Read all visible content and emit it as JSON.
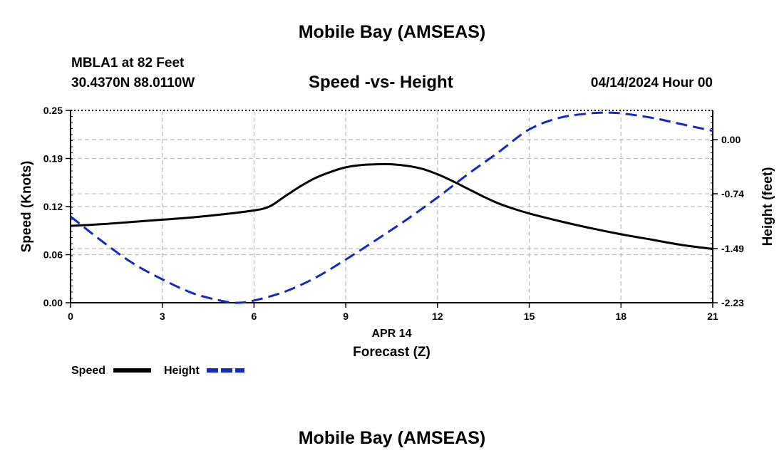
{
  "header": {
    "title": "Mobile Bay (AMSEAS)",
    "station": "MBLA1 at 82 Feet",
    "coords": "30.4370N  88.0110W",
    "subtitle": "Speed -vs- Height",
    "datetime": "04/14/2024 Hour 00"
  },
  "footer": {
    "title": "Mobile Bay (AMSEAS)"
  },
  "chart_data": {
    "type": "line",
    "title": "Speed -vs- Height",
    "xlabel": "Forecast (Z)",
    "xdate": "APR 14",
    "ylabel": "Speed (Knots)",
    "y2label": "Height (feet)",
    "xlim": [
      0,
      21
    ],
    "ylim": [
      0,
      0.25
    ],
    "y2lim": [
      -2.23,
      0.4
    ],
    "xticks": [
      "0",
      "3",
      "6",
      "9",
      "12",
      "15",
      "18",
      "21"
    ],
    "xtick_values": [
      0,
      3,
      6,
      9,
      12,
      15,
      18,
      21
    ],
    "yticks": [
      "0.00",
      "0.06",
      "0.12",
      "0.19",
      "0.25"
    ],
    "ytick_values": [
      0.0,
      0.0625,
      0.125,
      0.1875,
      0.25
    ],
    "y2ticks": [
      "-2.23",
      "-1.49",
      "-0.74",
      "0.00"
    ],
    "y2tick_values": [
      -2.23,
      -1.49,
      -0.74,
      0.0
    ],
    "grid": true,
    "legend_position": "bottom-left",
    "series": [
      {
        "name": "Speed",
        "axis": "left",
        "color": "#000000",
        "style": "solid",
        "x": [
          0,
          1,
          2,
          3,
          4,
          5,
          6,
          6.5,
          7,
          7.5,
          8,
          8.5,
          9,
          9.5,
          10,
          10.5,
          11,
          11.5,
          12,
          12.5,
          13,
          13.5,
          14,
          14.5,
          15,
          16,
          17,
          18,
          19,
          20,
          21
        ],
        "values": [
          0.1,
          0.102,
          0.105,
          0.108,
          0.111,
          0.115,
          0.12,
          0.125,
          0.138,
          0.151,
          0.162,
          0.17,
          0.176,
          0.179,
          0.18,
          0.18,
          0.178,
          0.174,
          0.167,
          0.158,
          0.148,
          0.138,
          0.129,
          0.122,
          0.116,
          0.106,
          0.097,
          0.089,
          0.082,
          0.075,
          0.07
        ]
      },
      {
        "name": "Height",
        "axis": "right",
        "color": "#1428c8",
        "style": "dashed",
        "x": [
          0,
          1,
          2,
          3,
          4,
          5,
          5.5,
          6,
          7,
          8,
          9,
          10,
          11,
          12,
          13,
          14,
          15,
          16,
          17,
          17.5,
          18,
          19,
          20,
          21
        ],
        "values": [
          -1.05,
          -1.38,
          -1.68,
          -1.91,
          -2.1,
          -2.21,
          -2.23,
          -2.2,
          -2.08,
          -1.89,
          -1.64,
          -1.37,
          -1.09,
          -0.79,
          -0.47,
          -0.17,
          0.14,
          0.3,
          0.36,
          0.37,
          0.36,
          0.3,
          0.21,
          0.12
        ]
      }
    ]
  }
}
